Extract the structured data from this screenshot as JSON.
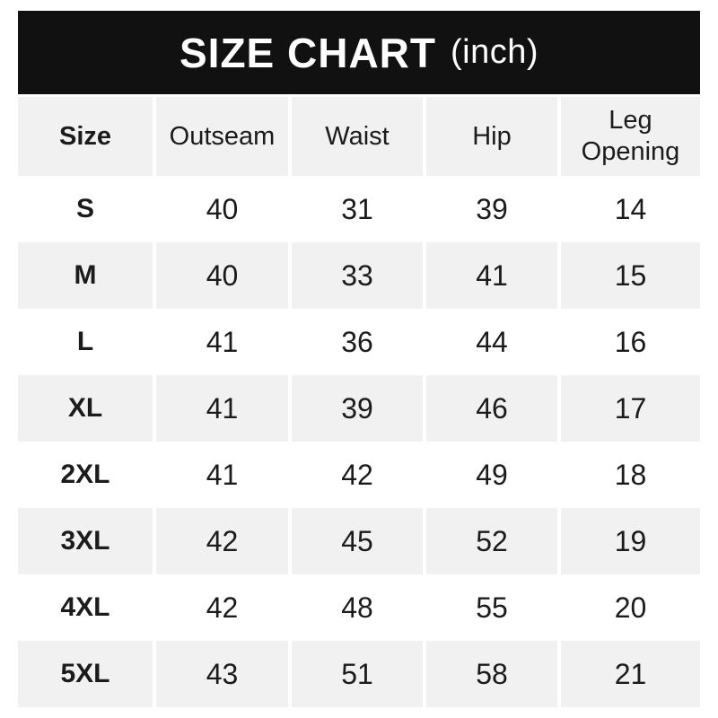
{
  "title": {
    "main": "SIZE CHART",
    "unit": "(inch)"
  },
  "colors": {
    "title_bar_bg": "#111111",
    "title_bar_text": "#ffffff",
    "row_alt_bg": "#f1f1f1",
    "row_bg": "#ffffff",
    "text": "#1b1b1b"
  },
  "table": {
    "columns": [
      "Size",
      "Outseam",
      "Waist",
      "Hip",
      "Leg Opening"
    ],
    "rows": [
      {
        "size": "S",
        "values": [
          "40",
          "31",
          "39",
          "14"
        ]
      },
      {
        "size": "M",
        "values": [
          "40",
          "33",
          "41",
          "15"
        ]
      },
      {
        "size": "L",
        "values": [
          "41",
          "36",
          "44",
          "16"
        ]
      },
      {
        "size": "XL",
        "values": [
          "41",
          "39",
          "46",
          "17"
        ]
      },
      {
        "size": "2XL",
        "values": [
          "41",
          "42",
          "49",
          "18"
        ]
      },
      {
        "size": "3XL",
        "values": [
          "42",
          "45",
          "52",
          "19"
        ]
      },
      {
        "size": "4XL",
        "values": [
          "42",
          "48",
          "55",
          "20"
        ]
      },
      {
        "size": "5XL",
        "values": [
          "43",
          "51",
          "58",
          "21"
        ]
      }
    ]
  },
  "chart_data": {
    "type": "table",
    "title": "SIZE CHART (inch)",
    "unit": "inch",
    "columns": [
      "Size",
      "Outseam",
      "Waist",
      "Hip",
      "Leg Opening"
    ],
    "rows": [
      [
        "S",
        40,
        31,
        39,
        14
      ],
      [
        "M",
        40,
        33,
        41,
        15
      ],
      [
        "L",
        41,
        36,
        44,
        16
      ],
      [
        "XL",
        41,
        39,
        46,
        17
      ],
      [
        "2XL",
        41,
        42,
        49,
        18
      ],
      [
        "3XL",
        42,
        45,
        52,
        19
      ],
      [
        "4XL",
        42,
        48,
        55,
        20
      ],
      [
        "5XL",
        43,
        51,
        58,
        21
      ]
    ]
  }
}
